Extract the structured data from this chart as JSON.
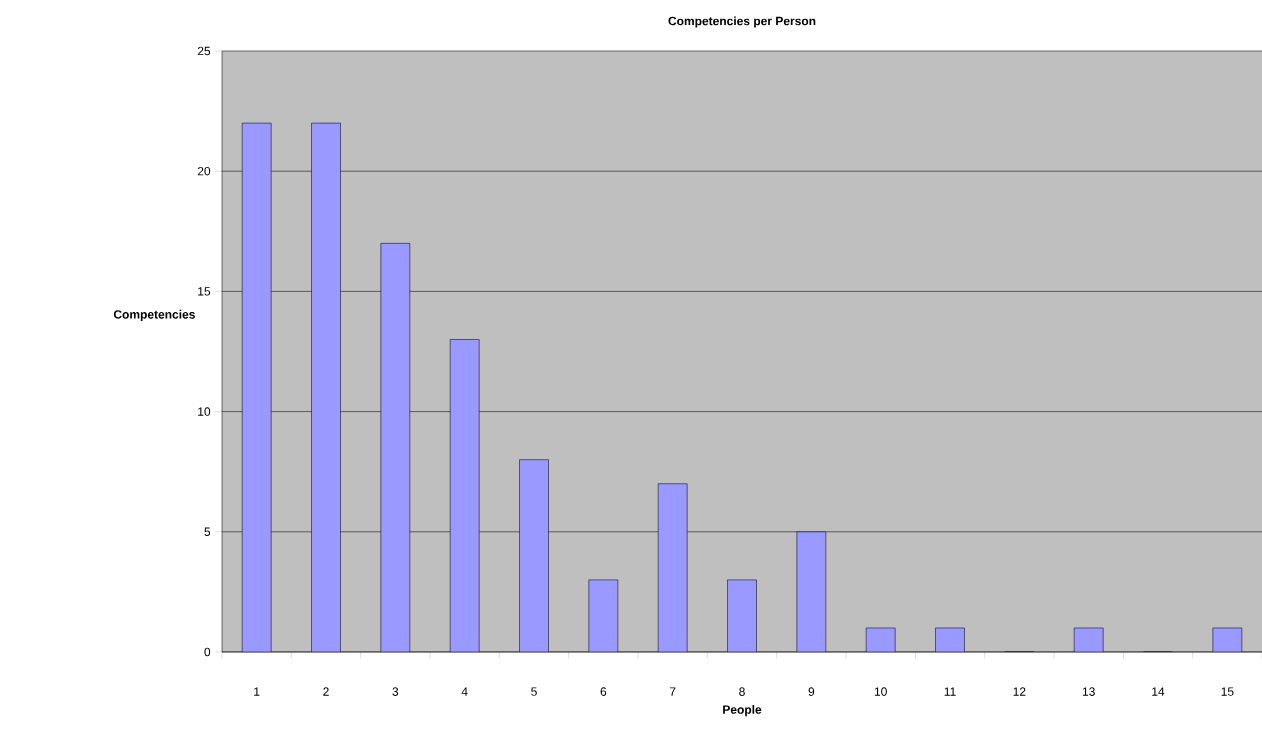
{
  "chart_data": {
    "type": "bar",
    "title": "Competencies per Person",
    "xlabel": "People",
    "ylabel": "Competencies",
    "categories": [
      "1",
      "2",
      "3",
      "4",
      "5",
      "6",
      "7",
      "8",
      "9",
      "10",
      "11",
      "12",
      "13",
      "14",
      "15"
    ],
    "values": [
      22,
      22,
      17,
      13,
      8,
      3,
      7,
      3,
      5,
      1,
      1,
      0,
      1,
      0,
      1
    ],
    "color": "#9999ff",
    "ylim": [
      0,
      25
    ],
    "yticks": [
      0,
      5,
      10,
      15,
      20,
      25
    ],
    "grid": "y"
  }
}
